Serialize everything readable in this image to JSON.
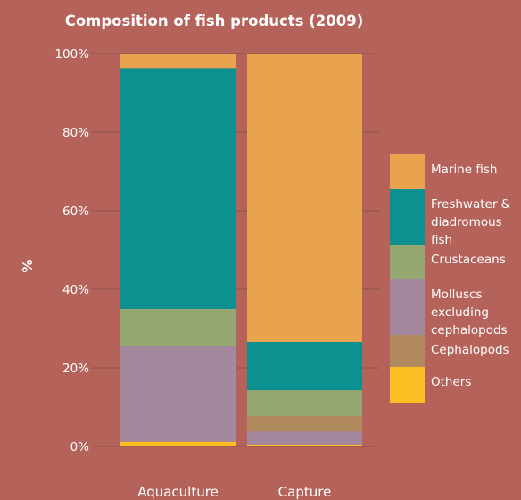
{
  "chart_data": {
    "type": "bar",
    "stacked": true,
    "title": "Composition of fish products (2009)",
    "ylabel": "%",
    "xlabel": "",
    "ylim": [
      0,
      100
    ],
    "yticks": [
      "0%",
      "20%",
      "40%",
      "60%",
      "80%",
      "100%"
    ],
    "ytick_values": [
      0,
      20,
      40,
      60,
      80,
      100
    ],
    "grid": true,
    "legend_position": "right",
    "categories": [
      "Aquaculture",
      "Capture"
    ],
    "series": [
      {
        "name": "Others",
        "color": "#fbbf24",
        "values": [
          1.2,
          0.5
        ]
      },
      {
        "name": "Molluscs excluding cephalopods",
        "color": "#a3889e",
        "values": [
          24.3,
          3.3
        ]
      },
      {
        "name": "Cephalopods",
        "color": "#b08a5c",
        "values": [
          0.0,
          3.9
        ]
      },
      {
        "name": "Crustaceans",
        "color": "#95a872",
        "values": [
          9.5,
          6.6
        ]
      },
      {
        "name": "Freshwater & diadromous fish",
        "color": "#0c9090",
        "values": [
          61.3,
          12.3
        ]
      },
      {
        "name": "Marine fish",
        "color": "#e9a24e",
        "values": [
          3.7,
          73.4
        ]
      }
    ],
    "legend_entries": [
      {
        "name": "Marine fish",
        "color": "#e9a24e"
      },
      {
        "name": "Freshwater & diadromous fish",
        "color": "#0c9090"
      },
      {
        "name": "Crustaceans",
        "color": "#95a872"
      },
      {
        "name": "Molluscs excluding cephalopods",
        "color": "#a3889e"
      },
      {
        "name": "Cephalopods",
        "color": "#b08a5c"
      },
      {
        "name": "Others",
        "color": "#fbbf24"
      }
    ]
  }
}
